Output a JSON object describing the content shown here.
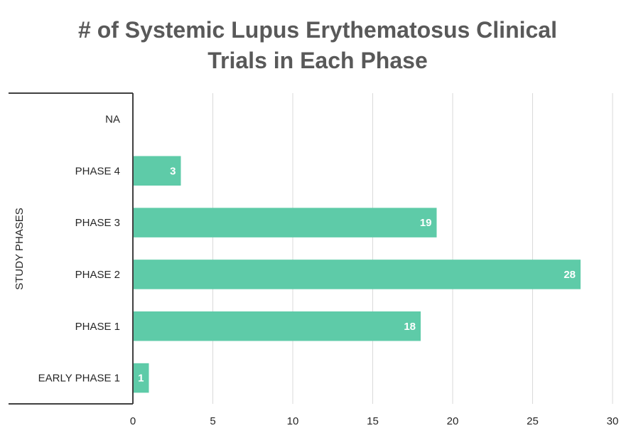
{
  "chart_data": {
    "type": "bar",
    "orientation": "horizontal",
    "title_lines": [
      "# of Systemic Lupus Erythematosus Clinical",
      "Trials in Each Phase"
    ],
    "ylabel": "STUDY PHASES",
    "xlabel": "",
    "categories": [
      "NA",
      "PHASE 4",
      "PHASE 3",
      "PHASE 2",
      "PHASE 1",
      "EARLY PHASE 1"
    ],
    "values": [
      null,
      3,
      19,
      28,
      18,
      1
    ],
    "data_labels": [
      "",
      "3",
      "19",
      "28",
      "18",
      "1"
    ],
    "xlim": [
      0,
      30
    ],
    "x_ticks": [
      0,
      5,
      10,
      15,
      20,
      25,
      30
    ],
    "x_tick_labels": [
      "0",
      "5",
      "10",
      "15",
      "20",
      "25",
      "30"
    ],
    "grid": "vertical",
    "legend": "none",
    "colors": {
      "bar": "#5ecba8",
      "grid": "#d9d9d9",
      "axis": "#404040",
      "title": "#595959",
      "text": "#262626",
      "data_label": "#ffffff"
    }
  }
}
